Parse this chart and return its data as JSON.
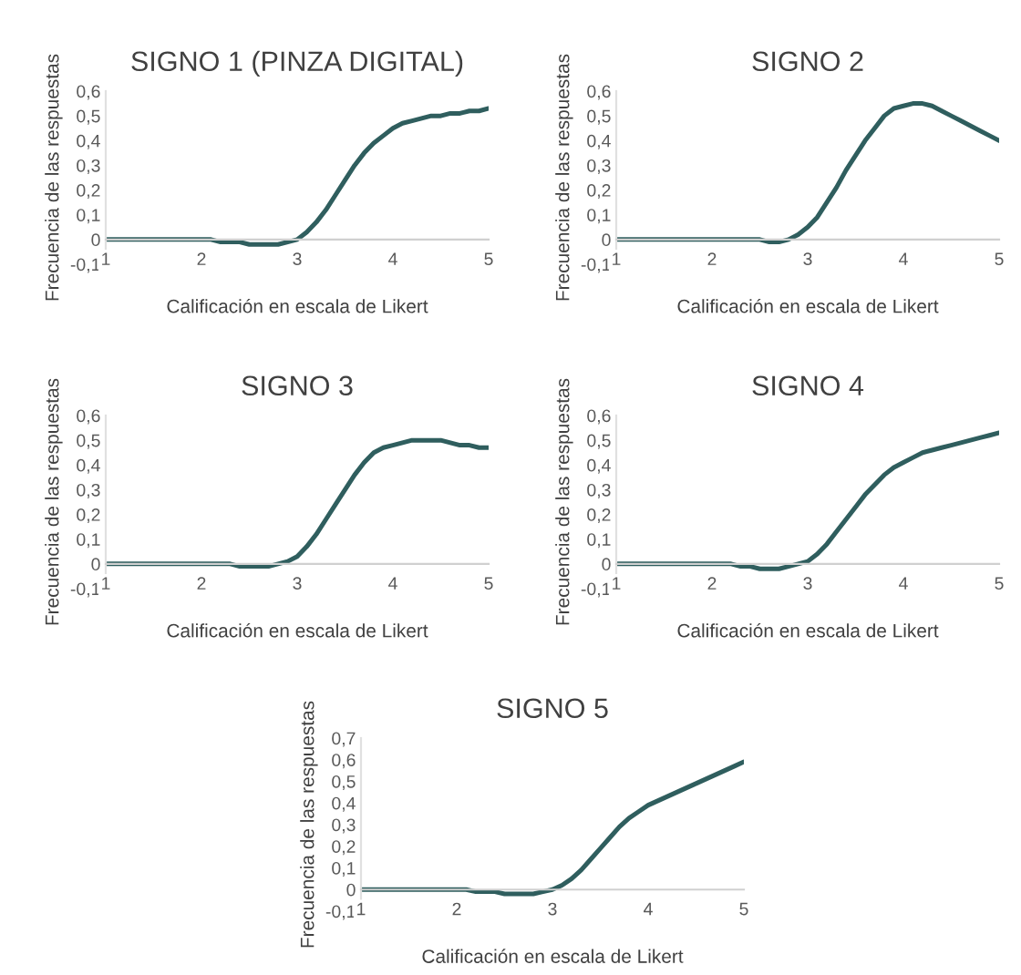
{
  "chart_data": [
    {
      "type": "line",
      "title": "SIGNO 1 (PINZA DIGITAL)",
      "xlabel": "Calificación en escala de Likert",
      "ylabel": "Frecuencia de las respuestas",
      "x": [
        1,
        1.1,
        1.2,
        1.3,
        1.4,
        1.5,
        1.6,
        1.7,
        1.8,
        1.9,
        2,
        2.1,
        2.2,
        2.3,
        2.4,
        2.5,
        2.6,
        2.7,
        2.8,
        2.9,
        3,
        3.1,
        3.2,
        3.3,
        3.4,
        3.5,
        3.6,
        3.7,
        3.8,
        3.9,
        4,
        4.1,
        4.2,
        4.3,
        4.4,
        4.5,
        4.6,
        4.7,
        4.8,
        4.9,
        5
      ],
      "series": [
        {
          "color": "#2f5e5e",
          "values": [
            0,
            0,
            0,
            0,
            0,
            0,
            0,
            0,
            0,
            0,
            0,
            0,
            -0.01,
            -0.01,
            -0.01,
            -0.02,
            -0.02,
            -0.02,
            -0.02,
            -0.01,
            0,
            0.03,
            0.07,
            0.12,
            0.18,
            0.24,
            0.3,
            0.35,
            0.39,
            0.42,
            0.45,
            0.47,
            0.48,
            0.49,
            0.5,
            0.5,
            0.51,
            0.51,
            0.52,
            0.52,
            0.53
          ]
        }
      ],
      "xlim": [
        1,
        5
      ],
      "xticks": [
        1,
        2,
        3,
        4,
        5
      ],
      "ylim": [
        -0.1,
        0.6
      ],
      "yticks": [
        {
          "value": -0.1,
          "label": "-0,1"
        },
        0,
        {
          "value": 0.1,
          "label": "0,1"
        },
        {
          "value": 0.2,
          "label": "0,2"
        },
        {
          "value": 0.3,
          "label": "0,3"
        },
        {
          "value": 0.4,
          "label": "0,4"
        },
        {
          "value": 0.5,
          "label": "0,5"
        },
        {
          "value": 0.6,
          "label": "0,6"
        }
      ],
      "grid": false,
      "legend": false
    },
    {
      "type": "line",
      "title": "SIGNO 2",
      "xlabel": "Calificación en escala de Likert",
      "ylabel": "Frecuencia de las respuestas",
      "x": [
        1,
        1.1,
        1.2,
        1.3,
        1.4,
        1.5,
        1.6,
        1.7,
        1.8,
        1.9,
        2,
        2.1,
        2.2,
        2.3,
        2.4,
        2.5,
        2.6,
        2.7,
        2.8,
        2.9,
        3,
        3.1,
        3.2,
        3.3,
        3.4,
        3.5,
        3.6,
        3.7,
        3.8,
        3.9,
        4,
        4.1,
        4.2,
        4.3,
        4.4,
        4.5,
        4.6,
        4.7,
        4.8,
        4.9,
        5
      ],
      "series": [
        {
          "color": "#2f5e5e",
          "values": [
            0,
            0,
            0,
            0,
            0,
            0,
            0,
            0,
            0,
            0,
            0,
            0,
            0,
            0,
            0,
            0,
            -0.01,
            -0.01,
            0,
            0.02,
            0.05,
            0.09,
            0.15,
            0.21,
            0.28,
            0.34,
            0.4,
            0.45,
            0.5,
            0.53,
            0.54,
            0.55,
            0.55,
            0.54,
            0.52,
            0.5,
            0.48,
            0.46,
            0.44,
            0.42,
            0.4
          ]
        }
      ],
      "xlim": [
        1,
        5
      ],
      "xticks": [
        1,
        2,
        3,
        4,
        5
      ],
      "ylim": [
        -0.1,
        0.6
      ],
      "yticks": [
        {
          "value": -0.1,
          "label": "-0,1"
        },
        0,
        {
          "value": 0.1,
          "label": "0,1"
        },
        {
          "value": 0.2,
          "label": "0,2"
        },
        {
          "value": 0.3,
          "label": "0,3"
        },
        {
          "value": 0.4,
          "label": "0,4"
        },
        {
          "value": 0.5,
          "label": "0,5"
        },
        {
          "value": 0.6,
          "label": "0,6"
        }
      ],
      "grid": false,
      "legend": false
    },
    {
      "type": "line",
      "title": "SIGNO 3",
      "xlabel": "Calificación en escala de Likert",
      "ylabel": "Frecuencia de las respuestas",
      "x": [
        1,
        1.1,
        1.2,
        1.3,
        1.4,
        1.5,
        1.6,
        1.7,
        1.8,
        1.9,
        2,
        2.1,
        2.2,
        2.3,
        2.4,
        2.5,
        2.6,
        2.7,
        2.8,
        2.9,
        3,
        3.1,
        3.2,
        3.3,
        3.4,
        3.5,
        3.6,
        3.7,
        3.8,
        3.9,
        4,
        4.1,
        4.2,
        4.3,
        4.4,
        4.5,
        4.6,
        4.7,
        4.8,
        4.9,
        5
      ],
      "series": [
        {
          "color": "#2f5e5e",
          "values": [
            0,
            0,
            0,
            0,
            0,
            0,
            0,
            0,
            0,
            0,
            0,
            0,
            0,
            0,
            -0.01,
            -0.01,
            -0.01,
            -0.01,
            0,
            0.01,
            0.03,
            0.07,
            0.12,
            0.18,
            0.24,
            0.3,
            0.36,
            0.41,
            0.45,
            0.47,
            0.48,
            0.49,
            0.5,
            0.5,
            0.5,
            0.5,
            0.49,
            0.48,
            0.48,
            0.47,
            0.47
          ]
        }
      ],
      "xlim": [
        1,
        5
      ],
      "xticks": [
        1,
        2,
        3,
        4,
        5
      ],
      "ylim": [
        -0.1,
        0.6
      ],
      "yticks": [
        {
          "value": -0.1,
          "label": "-0,1"
        },
        0,
        {
          "value": 0.1,
          "label": "0,1"
        },
        {
          "value": 0.2,
          "label": "0,2"
        },
        {
          "value": 0.3,
          "label": "0,3"
        },
        {
          "value": 0.4,
          "label": "0,4"
        },
        {
          "value": 0.5,
          "label": "0,5"
        },
        {
          "value": 0.6,
          "label": "0,6"
        }
      ],
      "grid": false,
      "legend": false
    },
    {
      "type": "line",
      "title": "SIGNO 4",
      "xlabel": "Calificación en escala de Likert",
      "ylabel": "Frecuencia de las respuestas",
      "x": [
        1,
        1.1,
        1.2,
        1.3,
        1.4,
        1.5,
        1.6,
        1.7,
        1.8,
        1.9,
        2,
        2.1,
        2.2,
        2.3,
        2.4,
        2.5,
        2.6,
        2.7,
        2.8,
        2.9,
        3,
        3.1,
        3.2,
        3.3,
        3.4,
        3.5,
        3.6,
        3.7,
        3.8,
        3.9,
        4,
        4.1,
        4.2,
        4.3,
        4.4,
        4.5,
        4.6,
        4.7,
        4.8,
        4.9,
        5
      ],
      "series": [
        {
          "color": "#2f5e5e",
          "values": [
            0,
            0,
            0,
            0,
            0,
            0,
            0,
            0,
            0,
            0,
            0,
            0,
            0,
            -0.01,
            -0.01,
            -0.02,
            -0.02,
            -0.02,
            -0.01,
            0,
            0.01,
            0.04,
            0.08,
            0.13,
            0.18,
            0.23,
            0.28,
            0.32,
            0.36,
            0.39,
            0.41,
            0.43,
            0.45,
            0.46,
            0.47,
            0.48,
            0.49,
            0.5,
            0.51,
            0.52,
            0.53
          ]
        }
      ],
      "xlim": [
        1,
        5
      ],
      "xticks": [
        1,
        2,
        3,
        4,
        5
      ],
      "ylim": [
        -0.1,
        0.6
      ],
      "yticks": [
        {
          "value": -0.1,
          "label": "-0,1"
        },
        0,
        {
          "value": 0.1,
          "label": "0,1"
        },
        {
          "value": 0.2,
          "label": "0,2"
        },
        {
          "value": 0.3,
          "label": "0,3"
        },
        {
          "value": 0.4,
          "label": "0,4"
        },
        {
          "value": 0.5,
          "label": "0,5"
        },
        {
          "value": 0.6,
          "label": "0,6"
        }
      ],
      "grid": false,
      "legend": false
    },
    {
      "type": "line",
      "title": "SIGNO 5",
      "xlabel": "Calificación en escala de Likert",
      "ylabel": "Frecuencia de las respuestas",
      "x": [
        1,
        1.1,
        1.2,
        1.3,
        1.4,
        1.5,
        1.6,
        1.7,
        1.8,
        1.9,
        2,
        2.1,
        2.2,
        2.3,
        2.4,
        2.5,
        2.6,
        2.7,
        2.8,
        2.9,
        3,
        3.1,
        3.2,
        3.3,
        3.4,
        3.5,
        3.6,
        3.7,
        3.8,
        3.9,
        4,
        4.1,
        4.2,
        4.3,
        4.4,
        4.5,
        4.6,
        4.7,
        4.8,
        4.9,
        5
      ],
      "series": [
        {
          "color": "#2f5e5e",
          "values": [
            0,
            0,
            0,
            0,
            0,
            0,
            0,
            0,
            0,
            0,
            0,
            0,
            -0.01,
            -0.01,
            -0.01,
            -0.02,
            -0.02,
            -0.02,
            -0.02,
            -0.01,
            0,
            0.02,
            0.05,
            0.09,
            0.14,
            0.19,
            0.24,
            0.29,
            0.33,
            0.36,
            0.39,
            0.41,
            0.43,
            0.45,
            0.47,
            0.49,
            0.51,
            0.53,
            0.55,
            0.57,
            0.59
          ]
        }
      ],
      "xlim": [
        1,
        5
      ],
      "xticks": [
        1,
        2,
        3,
        4,
        5
      ],
      "ylim": [
        -0.1,
        0.7
      ],
      "yticks": [
        {
          "value": -0.1,
          "label": "-0,1"
        },
        0,
        {
          "value": 0.1,
          "label": "0,1"
        },
        {
          "value": 0.2,
          "label": "0,2"
        },
        {
          "value": 0.3,
          "label": "0,3"
        },
        {
          "value": 0.4,
          "label": "0,4"
        },
        {
          "value": 0.5,
          "label": "0,5"
        },
        {
          "value": 0.6,
          "label": "0,6"
        },
        {
          "value": 0.7,
          "label": "0,7"
        }
      ],
      "grid": false,
      "legend": false
    }
  ]
}
